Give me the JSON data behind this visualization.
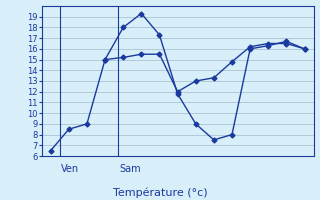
{
  "line1_x": [
    0,
    1,
    2,
    3,
    4,
    5,
    6,
    7,
    8,
    9,
    10,
    11,
    12,
    13,
    14
  ],
  "line1_y": [
    6.5,
    8.5,
    9.0,
    15.0,
    18.0,
    19.3,
    17.3,
    11.8,
    9.0,
    7.5,
    8.0,
    16.0,
    16.3,
    16.7,
    16.0
  ],
  "line2_x": [
    3,
    4,
    5,
    6,
    7,
    8,
    9,
    10,
    11,
    12,
    13,
    14
  ],
  "line2_y": [
    15.0,
    15.2,
    15.5,
    15.5,
    12.0,
    13.0,
    13.3,
    14.8,
    16.2,
    16.5,
    16.5,
    16.0
  ],
  "line_color": "#1a3a9e",
  "bg_color": "#d8eef8",
  "grid_color": "#b0c8d8",
  "xlabel": "Température (°c)",
  "ylim": [
    6,
    20
  ],
  "yticks": [
    6,
    7,
    8,
    9,
    10,
    11,
    12,
    13,
    14,
    15,
    16,
    17,
    18,
    19
  ],
  "xlim": [
    -0.5,
    14.5
  ],
  "ven_label": "Ven",
  "sam_label": "Sam",
  "ven_line_x": 0.5,
  "sam_line_x": 3.7
}
